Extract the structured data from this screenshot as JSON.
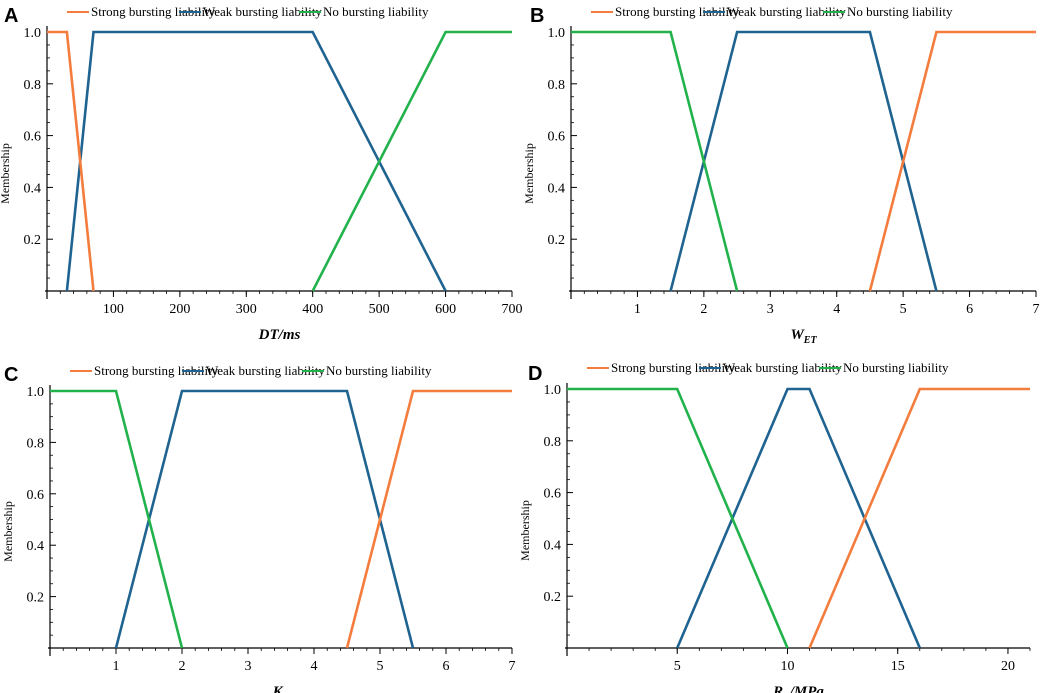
{
  "figure": {
    "panels": [
      "A",
      "B",
      "C",
      "D"
    ]
  },
  "chart_data": [
    {
      "panel": "A",
      "type": "line",
      "title": "",
      "xlabel": "DT/ms",
      "ylabel": "Membership",
      "xlim": [
        0,
        700
      ],
      "ylim": [
        0,
        1.0
      ],
      "xticks": [
        100,
        200,
        300,
        400,
        500,
        600,
        700
      ],
      "yticks": [
        0.2,
        0.4,
        0.6,
        0.8,
        1.0
      ],
      "xtick_labels": [
        "100",
        "200",
        "300",
        "400",
        "500",
        "600",
        "700"
      ],
      "ytick_labels": [
        "0.2",
        "0.4",
        "0.6",
        "0.8",
        "1.0"
      ],
      "legend": [
        "Strong bursting liability",
        "Weak bursting liability",
        "No bursting liability"
      ],
      "series": [
        {
          "name": "Strong bursting liability",
          "color": "#F47C3C",
          "points": [
            [
              0,
              1
            ],
            [
              30,
              1
            ],
            [
              70,
              0
            ]
          ]
        },
        {
          "name": "Weak bursting liability",
          "color": "#1F6391",
          "points": [
            [
              30,
              0
            ],
            [
              70,
              1
            ],
            [
              400,
              1
            ],
            [
              600,
              0
            ]
          ]
        },
        {
          "name": "No bursting liability",
          "color": "#22B24C",
          "points": [
            [
              400,
              0
            ],
            [
              600,
              1
            ],
            [
              700,
              1
            ]
          ]
        }
      ]
    },
    {
      "panel": "B",
      "type": "line",
      "title": "",
      "xlabel": "W",
      "xlabel_sub": "ET",
      "ylabel": "Membership",
      "xlim": [
        0,
        7
      ],
      "ylim": [
        0,
        1.0
      ],
      "xticks": [
        1,
        2,
        3,
        4,
        5,
        6,
        7
      ],
      "yticks": [
        0.2,
        0.4,
        0.6,
        0.8,
        1.0
      ],
      "xtick_labels": [
        "1",
        "2",
        "3",
        "4",
        "5",
        "6",
        "7"
      ],
      "ytick_labels": [
        "0.2",
        "0.4",
        "0.6",
        "0.8",
        "1.0"
      ],
      "legend": [
        "Strong bursting liability",
        "Weak bursting liability",
        "No bursting liability"
      ],
      "series": [
        {
          "name": "Strong bursting liability",
          "color": "#F47C3C",
          "points": [
            [
              4.5,
              0
            ],
            [
              5.5,
              1
            ],
            [
              7,
              1
            ]
          ]
        },
        {
          "name": "Weak bursting liability",
          "color": "#1F6391",
          "points": [
            [
              1.5,
              0
            ],
            [
              2.5,
              1
            ],
            [
              4.5,
              1
            ],
            [
              5.5,
              0
            ]
          ]
        },
        {
          "name": "No bursting liability",
          "color": "#22B24C",
          "points": [
            [
              0,
              1
            ],
            [
              1.5,
              1
            ],
            [
              2.5,
              0
            ]
          ]
        }
      ]
    },
    {
      "panel": "C",
      "type": "line",
      "title": "",
      "xlabel": "K",
      "xlabel_sub": "E",
      "ylabel": "Membership",
      "xlim": [
        0,
        7
      ],
      "ylim": [
        0,
        1.0
      ],
      "xticks": [
        1,
        2,
        3,
        4,
        5,
        6,
        7
      ],
      "yticks": [
        0.2,
        0.4,
        0.6,
        0.8,
        1.0
      ],
      "xtick_labels": [
        "1",
        "2",
        "3",
        "4",
        "5",
        "6",
        "7"
      ],
      "ytick_labels": [
        "0.2",
        "0.4",
        "0.6",
        "0.8",
        "1.0"
      ],
      "legend": [
        "Strong bursting liability",
        "Weak bursting liability",
        "No bursting liability"
      ],
      "series": [
        {
          "name": "Strong bursting liability",
          "color": "#F47C3C",
          "points": [
            [
              4.5,
              0
            ],
            [
              5,
              0.5
            ],
            [
              5.5,
              1
            ],
            [
              7,
              1
            ]
          ]
        },
        {
          "name": "Weak bursting liability",
          "color": "#1F6391",
          "points": [
            [
              1,
              0
            ],
            [
              2,
              1
            ],
            [
              4.5,
              1
            ],
            [
              5.5,
              0
            ]
          ]
        },
        {
          "name": "No bursting liability",
          "color": "#22B24C",
          "points": [
            [
              0,
              1
            ],
            [
              1,
              1
            ],
            [
              2,
              0
            ]
          ]
        }
      ]
    },
    {
      "panel": "D",
      "type": "line",
      "title": "",
      "xlabel": "R",
      "xlabel_sub": "C",
      "xlabel_suffix": "/MPa",
      "ylabel": "Membership",
      "xlim": [
        0,
        21
      ],
      "ylim": [
        0,
        1.0
      ],
      "xticks": [
        5,
        10,
        15,
        20
      ],
      "yticks": [
        0.2,
        0.4,
        0.6,
        0.8,
        1.0
      ],
      "xtick_labels": [
        "5",
        "10",
        "15",
        "20"
      ],
      "ytick_labels": [
        "0.2",
        "0.4",
        "0.6",
        "0.8",
        "1.0"
      ],
      "legend": [
        "Strong bursting liability",
        "Weak bursting liability",
        "No bursting liability"
      ],
      "series": [
        {
          "name": "Strong bursting liability",
          "color": "#F47C3C",
          "points": [
            [
              11,
              0
            ],
            [
              16,
              1
            ],
            [
              21,
              1
            ]
          ]
        },
        {
          "name": "Weak bursting liability",
          "color": "#1F6391",
          "points": [
            [
              5,
              0
            ],
            [
              10,
              1
            ],
            [
              11,
              1
            ],
            [
              16,
              0
            ]
          ]
        },
        {
          "name": "No bursting liability",
          "color": "#22B24C",
          "points": [
            [
              0,
              1
            ],
            [
              5,
              1
            ],
            [
              10,
              0
            ]
          ]
        }
      ]
    }
  ]
}
